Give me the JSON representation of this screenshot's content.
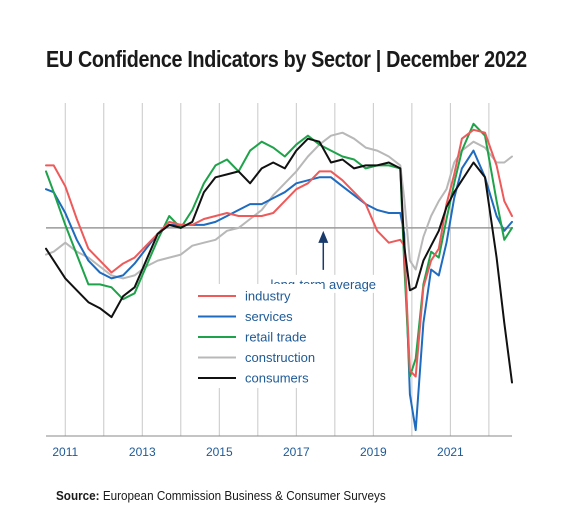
{
  "title": "EU Confidence Indicators by Sector | December 2022",
  "source_label": "Source:",
  "source_text": "European Commission Business & Consumer Surveys",
  "chart_data": {
    "type": "line",
    "x_range": [
      2010.5,
      2022.6
    ],
    "y_range": [
      -3.5,
      2.1
    ],
    "baseline_value": 0,
    "x_tick_labels": [
      "2011",
      "2013",
      "2015",
      "2017",
      "2019",
      "2021"
    ],
    "x_tick_values": [
      2011,
      2013,
      2015,
      2017,
      2019,
      2021
    ],
    "grid_years": [
      2011,
      2012,
      2013,
      2014,
      2015,
      2016,
      2017,
      2018,
      2019,
      2020,
      2021,
      2022
    ],
    "annotation": {
      "text": "long-term average",
      "x": 2017.7,
      "y": 0
    },
    "series": [
      {
        "name": "industry",
        "color": "#ee5a5a",
        "x": [
          2010.5,
          2010.7,
          2011.0,
          2011.3,
          2011.6,
          2011.9,
          2012.2,
          2012.5,
          2012.8,
          2013.1,
          2013.4,
          2013.7,
          2014.0,
          2014.3,
          2014.6,
          2014.9,
          2015.2,
          2015.5,
          2015.8,
          2016.1,
          2016.4,
          2016.7,
          2017.0,
          2017.3,
          2017.6,
          2017.9,
          2018.2,
          2018.5,
          2018.8,
          2019.1,
          2019.4,
          2019.7,
          2019.8,
          2019.95,
          2020.1,
          2020.3,
          2020.5,
          2020.7,
          2020.9,
          2021.1,
          2021.3,
          2021.6,
          2021.9,
          2022.2,
          2022.4,
          2022.6
        ],
        "y": [
          1.05,
          1.05,
          0.7,
          0.15,
          -0.35,
          -0.55,
          -0.75,
          -0.6,
          -0.5,
          -0.3,
          -0.1,
          0.1,
          0.05,
          0.05,
          0.15,
          0.2,
          0.25,
          0.2,
          0.2,
          0.2,
          0.25,
          0.45,
          0.65,
          0.75,
          0.95,
          0.95,
          0.8,
          0.6,
          0.4,
          -0.05,
          -0.25,
          -0.2,
          -0.3,
          -2.4,
          -2.5,
          -1.0,
          -0.55,
          -0.35,
          0.4,
          0.9,
          1.5,
          1.65,
          1.6,
          1.05,
          0.45,
          0.2
        ]
      },
      {
        "name": "services",
        "color": "#1e6bbf",
        "x": [
          2010.5,
          2010.7,
          2011.0,
          2011.3,
          2011.6,
          2011.9,
          2012.2,
          2012.5,
          2012.8,
          2013.1,
          2013.4,
          2013.7,
          2014.0,
          2014.3,
          2014.6,
          2014.9,
          2015.2,
          2015.5,
          2015.8,
          2016.1,
          2016.4,
          2016.7,
          2017.0,
          2017.3,
          2017.6,
          2017.9,
          2018.2,
          2018.5,
          2018.8,
          2019.1,
          2019.4,
          2019.7,
          2019.8,
          2019.95,
          2020.1,
          2020.3,
          2020.5,
          2020.7,
          2020.9,
          2021.1,
          2021.3,
          2021.6,
          2021.9,
          2022.2,
          2022.4,
          2022.6
        ],
        "y": [
          0.65,
          0.6,
          0.25,
          -0.2,
          -0.55,
          -0.75,
          -0.85,
          -0.8,
          -0.6,
          -0.35,
          -0.1,
          0.05,
          0.05,
          0.05,
          0.05,
          0.1,
          0.2,
          0.3,
          0.4,
          0.4,
          0.5,
          0.6,
          0.75,
          0.8,
          0.85,
          0.85,
          0.7,
          0.55,
          0.4,
          0.3,
          0.25,
          0.25,
          -0.1,
          -2.8,
          -3.4,
          -1.6,
          -0.7,
          -0.8,
          -0.25,
          0.5,
          1.0,
          1.3,
          0.85,
          0.2,
          -0.05,
          0.1
        ]
      },
      {
        "name": "retail trade",
        "color": "#1ea34a",
        "x": [
          2010.5,
          2010.7,
          2011.0,
          2011.3,
          2011.6,
          2011.9,
          2012.2,
          2012.5,
          2012.8,
          2013.1,
          2013.4,
          2013.7,
          2014.0,
          2014.3,
          2014.6,
          2014.9,
          2015.2,
          2015.5,
          2015.8,
          2016.1,
          2016.4,
          2016.7,
          2017.0,
          2017.3,
          2017.6,
          2017.9,
          2018.2,
          2018.5,
          2018.8,
          2019.1,
          2019.4,
          2019.7,
          2019.8,
          2019.95,
          2020.1,
          2020.3,
          2020.5,
          2020.7,
          2020.9,
          2021.1,
          2021.3,
          2021.6,
          2021.9,
          2022.2,
          2022.4,
          2022.6
        ],
        "y": [
          0.95,
          0.6,
          0.05,
          -0.45,
          -0.95,
          -0.95,
          -1.0,
          -1.2,
          -1.1,
          -0.65,
          -0.2,
          0.2,
          0.0,
          0.3,
          0.75,
          1.05,
          1.15,
          0.95,
          1.3,
          1.45,
          1.35,
          1.2,
          1.4,
          1.55,
          1.4,
          1.3,
          1.2,
          1.15,
          1.0,
          1.05,
          1.05,
          1.0,
          -0.6,
          -2.5,
          -2.2,
          -0.95,
          -0.4,
          -0.5,
          0.15,
          0.75,
          1.3,
          1.75,
          1.55,
          0.45,
          -0.2,
          0.0
        ]
      },
      {
        "name": "construction",
        "color": "#b8b8b8",
        "x": [
          2010.5,
          2010.7,
          2011.0,
          2011.3,
          2011.6,
          2011.9,
          2012.2,
          2012.5,
          2012.8,
          2013.1,
          2013.4,
          2013.7,
          2014.0,
          2014.3,
          2014.6,
          2014.9,
          2015.2,
          2015.5,
          2015.8,
          2016.1,
          2016.4,
          2016.7,
          2017.0,
          2017.3,
          2017.6,
          2017.9,
          2018.2,
          2018.5,
          2018.8,
          2019.1,
          2019.4,
          2019.7,
          2019.8,
          2019.95,
          2020.1,
          2020.3,
          2020.5,
          2020.7,
          2020.9,
          2021.1,
          2021.3,
          2021.6,
          2021.9,
          2022.2,
          2022.4,
          2022.6
        ],
        "y": [
          -0.45,
          -0.4,
          -0.25,
          -0.4,
          -0.5,
          -0.65,
          -0.8,
          -0.85,
          -0.8,
          -0.65,
          -0.55,
          -0.5,
          -0.45,
          -0.3,
          -0.25,
          -0.2,
          -0.05,
          0.0,
          0.15,
          0.3,
          0.55,
          0.75,
          0.95,
          1.2,
          1.4,
          1.55,
          1.6,
          1.5,
          1.35,
          1.3,
          1.2,
          1.05,
          0.5,
          -0.55,
          -0.7,
          -0.15,
          0.2,
          0.45,
          0.65,
          1.1,
          1.3,
          1.45,
          1.35,
          1.1,
          1.1,
          1.2
        ]
      },
      {
        "name": "consumers",
        "color": "#111111",
        "x": [
          2010.5,
          2010.7,
          2011.0,
          2011.3,
          2011.6,
          2011.9,
          2012.2,
          2012.5,
          2012.8,
          2013.1,
          2013.4,
          2013.7,
          2014.0,
          2014.3,
          2014.6,
          2014.9,
          2015.2,
          2015.5,
          2015.8,
          2016.1,
          2016.4,
          2016.7,
          2017.0,
          2017.3,
          2017.6,
          2017.9,
          2018.2,
          2018.5,
          2018.8,
          2019.1,
          2019.4,
          2019.7,
          2019.8,
          2019.95,
          2020.1,
          2020.3,
          2020.5,
          2020.7,
          2020.9,
          2021.1,
          2021.3,
          2021.6,
          2021.9,
          2022.2,
          2022.4,
          2022.6
        ],
        "y": [
          -0.35,
          -0.55,
          -0.85,
          -1.05,
          -1.25,
          -1.35,
          -1.5,
          -1.15,
          -1.0,
          -0.55,
          -0.1,
          0.05,
          0.0,
          0.1,
          0.6,
          0.85,
          0.9,
          0.95,
          0.75,
          1.0,
          1.1,
          1.0,
          1.3,
          1.5,
          1.45,
          1.1,
          1.15,
          1.0,
          1.05,
          1.05,
          1.1,
          1.0,
          -0.3,
          -1.05,
          -1.0,
          -0.55,
          -0.3,
          -0.05,
          0.35,
          0.6,
          0.8,
          1.1,
          0.85,
          -0.5,
          -1.6,
          -2.6
        ]
      }
    ]
  }
}
